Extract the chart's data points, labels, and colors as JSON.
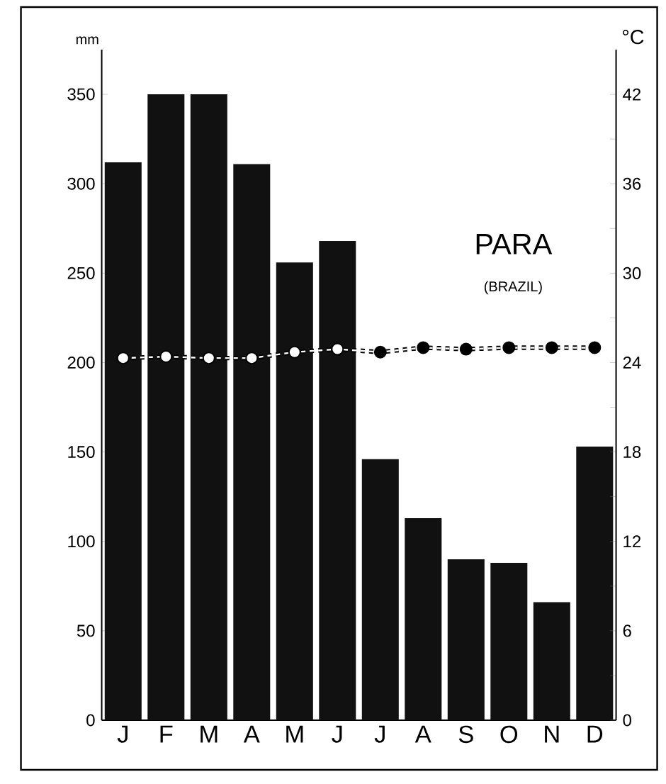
{
  "chart_data": {
    "type": "bar",
    "title": "PARA",
    "subtitle": "(BRAZIL)",
    "ylabel": "mm",
    "y2label": "°C",
    "categories": [
      "J",
      "F",
      "M",
      "A",
      "M",
      "J",
      "J",
      "A",
      "S",
      "O",
      "N",
      "D"
    ],
    "series": [
      {
        "color": "#111111",
        "values": [
          312,
          350,
          350,
          311,
          256,
          268,
          146,
          113,
          90,
          88,
          66,
          153
        ]
      },
      {
        "type": "line",
        "axis": "y2",
        "color": "#000000",
        "colors": [
          "#ffffff",
          "#ffffff",
          "#ffffff",
          "#ffffff",
          "#ffffff",
          "#ffffff",
          "#000000",
          "#000000",
          "#000000",
          "#000000",
          "#000000",
          "#000000"
        ],
        "values": [
          24.3,
          24.4,
          24.3,
          24.3,
          24.7,
          24.9,
          24.7,
          25.0,
          24.9,
          25.0,
          25.0,
          25.0
        ]
      }
    ],
    "ylim": [
      0,
      375
    ],
    "yticks": [
      0,
      50,
      100,
      150,
      200,
      250,
      300,
      350
    ],
    "y2lim": [
      0,
      45
    ],
    "y2ticks": [
      0,
      {
        "value": 3,
        "label": null
      },
      6,
      {
        "value": 9,
        "label": null
      },
      12,
      {
        "value": 15,
        "label": null
      },
      18,
      {
        "value": 21,
        "label": null
      },
      24,
      {
        "value": 27,
        "label": null
      },
      30,
      {
        "value": 33,
        "label": null
      },
      36,
      {
        "value": 39,
        "label": null
      },
      42
    ],
    "marker": "circle",
    "line_style": "dashed"
  }
}
